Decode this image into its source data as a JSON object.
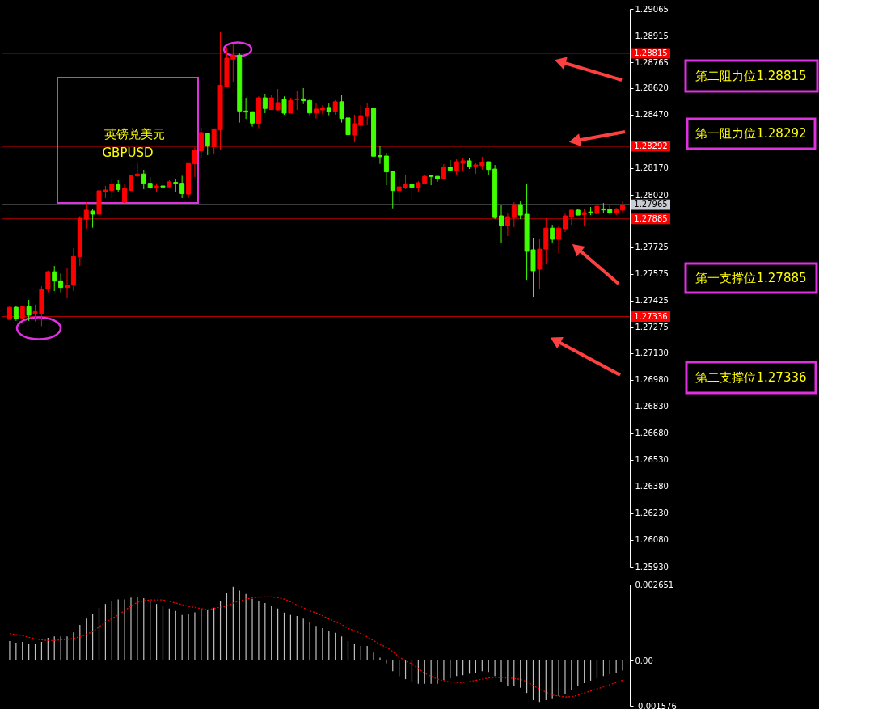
{
  "chart_data": [
    {
      "type": "candlestick",
      "tick_labels": "y",
      "categories": [
        null,
        null,
        null,
        null,
        null,
        null,
        null,
        null,
        null,
        null,
        null,
        null,
        null,
        null,
        null,
        null,
        null,
        null,
        null,
        null,
        null,
        null,
        null,
        null,
        null,
        null,
        null,
        null,
        null,
        null,
        null,
        null,
        null,
        null,
        null,
        null,
        null,
        null,
        null,
        null,
        null,
        null,
        null,
        null,
        null,
        null,
        null,
        null,
        null,
        null,
        null,
        null,
        null,
        null,
        null,
        null,
        null,
        null,
        null,
        null,
        null,
        null,
        null,
        null,
        null,
        null,
        null,
        null,
        null,
        null,
        null,
        null,
        null,
        null,
        null,
        null,
        null,
        null,
        null,
        null,
        null,
        null,
        null,
        null,
        null,
        null,
        null,
        null,
        null,
        null,
        null,
        null,
        null,
        null,
        null,
        null,
        null
      ],
      "ohlc": [
        [
          1.2732,
          1.27391,
          1.2732,
          1.27388
        ],
        [
          1.27388,
          1.27398,
          1.27312,
          1.27323
        ],
        [
          1.27328,
          1.27396,
          1.27325,
          1.27391
        ],
        [
          1.27391,
          1.27429,
          1.27312,
          1.27343
        ],
        [
          1.27353,
          1.27403,
          1.27308,
          1.27364
        ],
        [
          1.2735,
          1.27506,
          1.27282,
          1.27491
        ],
        [
          1.2749,
          1.27594,
          1.27472,
          1.27588
        ],
        [
          1.27588,
          1.2762,
          1.27479,
          1.27535
        ],
        [
          1.27537,
          1.27578,
          1.27472,
          1.27499
        ],
        [
          1.27499,
          1.27611,
          1.27438,
          1.27512
        ],
        [
          1.27512,
          1.2772,
          1.27479,
          1.27673
        ],
        [
          1.27673,
          1.279,
          1.2762,
          1.27888
        ],
        [
          1.27883,
          1.27979,
          1.2783,
          1.27934
        ],
        [
          1.27929,
          1.27938,
          1.27835,
          1.27911
        ],
        [
          1.27911,
          1.28079,
          1.27908,
          1.28043
        ],
        [
          1.28036,
          1.2807,
          1.28002,
          1.28047
        ],
        [
          1.28044,
          1.28106,
          1.28002,
          1.28079
        ],
        [
          1.28077,
          1.28102,
          1.28035,
          1.2805
        ],
        [
          1.27979,
          1.28079,
          1.27971,
          1.28056
        ],
        [
          1.28044,
          1.28127,
          1.28044,
          1.28127
        ],
        [
          1.28126,
          1.28199,
          1.2812,
          1.28137
        ],
        [
          1.28137,
          1.28161,
          1.28052,
          1.28085
        ],
        [
          1.28085,
          1.2812,
          1.2805,
          1.28059
        ],
        [
          1.28058,
          1.28082,
          1.28034,
          1.2807
        ],
        [
          1.2807,
          1.28118,
          1.28052,
          1.28064
        ],
        [
          1.28065,
          1.28102,
          1.28056,
          1.28093
        ],
        [
          1.2809,
          1.28106,
          1.28037,
          1.28085
        ],
        [
          1.28085,
          1.28127,
          1.28002,
          1.28027
        ],
        [
          1.28024,
          1.28196,
          1.28002,
          1.28196
        ],
        [
          1.28194,
          1.2829,
          1.2812,
          1.2827
        ],
        [
          1.28267,
          1.28397,
          1.28226,
          1.2837
        ],
        [
          1.28365,
          1.28368,
          1.28243,
          1.28294
        ],
        [
          1.2829,
          1.28391,
          1.28247,
          1.28391
        ],
        [
          1.28385,
          1.28937,
          1.28271,
          1.28636
        ],
        [
          1.28629,
          1.2885,
          1.28623,
          1.28788
        ],
        [
          1.28782,
          1.28865,
          1.28653,
          1.28805
        ],
        [
          1.28805,
          1.28815,
          1.28426,
          1.28491
        ],
        [
          1.28491,
          1.28565,
          1.28446,
          1.28485
        ],
        [
          1.28487,
          1.28487,
          1.28403,
          1.28423
        ],
        [
          1.28421,
          1.28573,
          1.28394,
          1.28565
        ],
        [
          1.28565,
          1.28588,
          1.28479,
          1.28505
        ],
        [
          1.28499,
          1.28582,
          1.28499,
          1.28565
        ],
        [
          1.28497,
          1.28615,
          1.28494,
          1.28538
        ],
        [
          1.28555,
          1.28573,
          1.2847,
          1.28479
        ],
        [
          1.28479,
          1.28565,
          1.28479,
          1.2855
        ],
        [
          1.28555,
          1.28606,
          1.28497,
          1.28559
        ],
        [
          1.28559,
          1.2862,
          1.2853,
          1.28549
        ],
        [
          1.2855,
          1.28555,
          1.28467,
          1.2848
        ],
        [
          1.2848,
          1.28538,
          1.28449,
          1.28502
        ],
        [
          1.28497,
          1.28524,
          1.28471,
          1.28509
        ],
        [
          1.28511,
          1.28533,
          1.28467,
          1.28487
        ],
        [
          1.2849,
          1.28552,
          1.2847,
          1.28543
        ],
        [
          1.28543,
          1.28579,
          1.28426,
          1.28449
        ],
        [
          1.28452,
          1.28487,
          1.28308,
          1.28358
        ],
        [
          1.28356,
          1.2847,
          1.28315,
          1.2842
        ],
        [
          1.28411,
          1.28524,
          1.28383,
          1.28465
        ],
        [
          1.28461,
          1.28537,
          1.28411,
          1.28506
        ],
        [
          1.28506,
          1.28506,
          1.28237,
          1.28237
        ],
        [
          1.2824,
          1.28297,
          1.28194,
          1.28234
        ],
        [
          1.28238,
          1.28256,
          1.28074,
          1.28149
        ],
        [
          1.28152,
          1.28156,
          1.27944,
          1.28044
        ],
        [
          1.28044,
          1.28106,
          1.27976,
          1.28065
        ],
        [
          1.28061,
          1.28129,
          1.28052,
          1.28079
        ],
        [
          1.28079,
          1.28083,
          1.2799,
          1.28062
        ],
        [
          1.28061,
          1.28097,
          1.28035,
          1.28088
        ],
        [
          1.28083,
          1.28133,
          1.2808,
          1.28124
        ],
        [
          1.28129,
          1.28133,
          1.28074,
          1.28123
        ],
        [
          1.28124,
          1.28124,
          1.28093,
          1.28111
        ],
        [
          1.28111,
          1.28193,
          1.28106,
          1.28175
        ],
        [
          1.28175,
          1.28216,
          1.28152,
          1.28158
        ],
        [
          1.28156,
          1.2822,
          1.28129,
          1.28206
        ],
        [
          1.28197,
          1.28225,
          1.28156,
          1.28211
        ],
        [
          1.28211,
          1.28225,
          1.28165,
          1.28179
        ],
        [
          1.28182,
          1.28197,
          1.28138,
          1.28188
        ],
        [
          1.28184,
          1.28234,
          1.28161,
          1.28202
        ],
        [
          1.28206,
          1.28206,
          1.28129,
          1.28162
        ],
        [
          1.28165,
          1.28188,
          1.27883,
          1.27892
        ],
        [
          1.27902,
          1.27965,
          1.27752,
          1.27847
        ],
        [
          1.27847,
          1.27915,
          1.27788,
          1.27897
        ],
        [
          1.27892,
          1.27979,
          1.27838,
          1.27965
        ],
        [
          1.27965,
          1.27983,
          1.27883,
          1.27906
        ],
        [
          1.27911,
          1.28079,
          1.27542,
          1.27702
        ],
        [
          1.27711,
          1.27779,
          1.27447,
          1.27593
        ],
        [
          1.27602,
          1.2777,
          1.27493,
          1.27715
        ],
        [
          1.27715,
          1.27888,
          1.27634,
          1.27833
        ],
        [
          1.27833,
          1.27852,
          1.27752,
          1.2777
        ],
        [
          1.2777,
          1.27847,
          1.27693,
          1.27833
        ],
        [
          1.27829,
          1.27915,
          1.27811,
          1.27902
        ],
        [
          1.27897,
          1.27934,
          1.27852,
          1.27934
        ],
        [
          1.27934,
          1.27943,
          1.27906,
          1.27906
        ],
        [
          1.27909,
          1.27938,
          1.27847,
          1.2792
        ],
        [
          1.27924,
          1.27952,
          1.27906,
          1.27918
        ],
        [
          1.27915,
          1.27956,
          1.27915,
          1.27956
        ],
        [
          1.27941,
          1.27974,
          1.27915,
          1.27935
        ],
        [
          1.27938,
          1.27965,
          1.27911,
          1.2792
        ],
        [
          1.2792,
          1.27947,
          1.27906,
          1.27938
        ],
        [
          1.27934,
          1.27983,
          1.27915,
          1.27961
        ]
      ],
      "colors": [
        "#ff0000",
        "#40ff00",
        "#ff0000",
        "#40ff00",
        "#ff0000",
        "#ff0000",
        "#ff0000",
        "#40ff00",
        "#40ff00",
        "#ff0000",
        "#ff0000",
        "#ff0000",
        "#ff0000",
        "#40ff00",
        "#ff0000",
        "#ff0000",
        "#ff0000",
        "#40ff00",
        "#ff0000",
        "#ff0000",
        "#ff0000",
        "#40ff00",
        "#40ff00",
        "#ff0000",
        "#40ff00",
        "#ff0000",
        "#40ff00",
        "#40ff00",
        "#ff0000",
        "#ff0000",
        "#ff0000",
        "#40ff00",
        "#ff0000",
        "#ff0000",
        "#ff0000",
        "#ff0000",
        "#40ff00",
        "#40ff00",
        "#40ff00",
        "#ff0000",
        "#40ff00",
        "#ff0000",
        "#ff0000",
        "#40ff00",
        "#ff0000",
        "#ff0000",
        "#40ff00",
        "#40ff00",
        "#ff0000",
        "#ff0000",
        "#40ff00",
        "#ff0000",
        "#40ff00",
        "#40ff00",
        "#ff0000",
        "#ff0000",
        "#ff0000",
        "#40ff00",
        "#40ff00",
        "#40ff00",
        "#40ff00",
        "#ff0000",
        "#ff0000",
        "#40ff00",
        "#ff0000",
        "#ff0000",
        "#40ff00",
        "#40ff00",
        "#ff0000",
        "#40ff00",
        "#ff0000",
        "#ff0000",
        "#40ff00",
        "#ff0000",
        "#ff0000",
        "#40ff00",
        "#40ff00",
        "#40ff00",
        "#ff0000",
        "#ff0000",
        "#40ff00",
        "#40ff00",
        "#40ff00",
        "#ff0000",
        "#ff0000",
        "#40ff00",
        "#ff0000",
        "#ff0000",
        "#ff0000",
        "#40ff00",
        "#ff0000",
        "#40ff00",
        "#ff0000",
        "#40ff00",
        "#40ff00",
        "#ff0000",
        "#ff0000"
      ],
      "ylim": [
        1.2593,
        1.29065
      ],
      "yticks": [
        {
          "value": 1.29065,
          "label": "1.29065"
        },
        {
          "value": 1.28915,
          "label": "1.28915"
        },
        {
          "value": 1.28765,
          "label": "1.28765"
        },
        {
          "value": 1.2862,
          "label": "1.28620"
        },
        {
          "value": 1.2847,
          "label": "1.28470"
        },
        {
          "value": 1.2817,
          "label": "1.28170"
        },
        {
          "value": 1.2802,
          "label": "1.28020"
        },
        {
          "value": 1.27725,
          "label": "1.27725"
        },
        {
          "value": 1.27575,
          "label": "1.27575"
        },
        {
          "value": 1.27425,
          "label": "1.27425"
        },
        {
          "value": 1.27275,
          "label": "1.27275"
        },
        {
          "value": 1.2713,
          "label": "1.27130"
        },
        {
          "value": 1.2698,
          "label": "1.26980"
        },
        {
          "value": 1.2683,
          "label": "1.26830"
        },
        {
          "value": 1.2668,
          "label": "1.26680"
        },
        {
          "value": 1.2653,
          "label": "1.26530"
        },
        {
          "value": 1.2638,
          "label": "1.26380"
        },
        {
          "value": 1.2623,
          "label": "1.26230"
        },
        {
          "value": 1.2608,
          "label": "1.26080"
        },
        {
          "value": 1.2593,
          "label": "1.25930"
        }
      ],
      "ref_lines": [
        {
          "axis": "y",
          "value": 1.28815,
          "label": "1.28815",
          "color": "#ff0000"
        },
        {
          "axis": "y",
          "value": 1.28292,
          "label": "1.28292",
          "color": "#ff0000"
        },
        {
          "axis": "y",
          "value": 1.27965,
          "label": "1.27965",
          "color": "#c8ccd4"
        },
        {
          "axis": "y",
          "value": 1.27885,
          "label": "1.27885",
          "color": "#ff0000"
        },
        {
          "axis": "y",
          "value": 1.27336,
          "label": "1.27336",
          "color": "#ff0000"
        }
      ],
      "annotations": [
        "英镑兑美元",
        "GBPUSD",
        "第二阻力位1.28815",
        "第一阻力位1.28292",
        "第一支撑位1.27885",
        "第二支撑位1.27336"
      ]
    },
    {
      "type": "bar",
      "tick_labels": "y",
      "categories": [
        null,
        null,
        null,
        null,
        null,
        null,
        null,
        null,
        null,
        null,
        null,
        null,
        null,
        null,
        null,
        null,
        null,
        null,
        null,
        null,
        null,
        null,
        null,
        null,
        null,
        null,
        null,
        null,
        null,
        null,
        null,
        null,
        null,
        null,
        null,
        null,
        null,
        null,
        null,
        null,
        null,
        null,
        null,
        null,
        null,
        null,
        null,
        null,
        null,
        null,
        null,
        null,
        null,
        null,
        null,
        null,
        null,
        null,
        null,
        null,
        null,
        null,
        null,
        null,
        null,
        null,
        null,
        null,
        null,
        null,
        null,
        null,
        null,
        null,
        null,
        null,
        null,
        null,
        null,
        null,
        null,
        null,
        null,
        null,
        null,
        null,
        null,
        null,
        null,
        null,
        null,
        null,
        null,
        null,
        null,
        null,
        null
      ],
      "series": [
        {
          "type": "bar",
          "color": "#c0c0c0",
          "values": [
            0.00068,
            0.00062,
            0.00065,
            0.00059,
            0.00057,
            0.00065,
            0.00079,
            0.00084,
            0.00084,
            0.00084,
            0.00098,
            0.00124,
            0.00146,
            0.00163,
            0.00184,
            0.00197,
            0.00208,
            0.00213,
            0.00213,
            0.00219,
            0.00222,
            0.00217,
            0.00208,
            0.00197,
            0.00189,
            0.00181,
            0.00173,
            0.00159,
            0.00163,
            0.00168,
            0.00179,
            0.00177,
            0.00184,
            0.00208,
            0.00236,
            0.00257,
            0.00244,
            0.00232,
            0.00215,
            0.00208,
            0.002,
            0.00192,
            0.00181,
            0.00167,
            0.00159,
            0.00155,
            0.00146,
            0.00133,
            0.00121,
            0.00113,
            0.00102,
            0.00097,
            0.00084,
            0.00068,
            0.00057,
            0.00051,
            0.00051,
            0.00028,
            0.0001,
            -0.0001,
            -0.00037,
            -0.00055,
            -0.00065,
            -0.00076,
            -0.00081,
            -0.00081,
            -0.00081,
            -0.00081,
            -0.00068,
            -0.00062,
            -0.00054,
            -0.00051,
            -0.00046,
            -0.00043,
            -0.00037,
            -0.0004,
            -0.00054,
            -0.00076,
            -0.00087,
            -0.0009,
            -0.00095,
            -0.00113,
            -0.00138,
            -0.00144,
            -0.00138,
            -0.00134,
            -0.00124,
            -0.00115,
            -0.00101,
            -0.0009,
            -0.00079,
            -0.0007,
            -0.00062,
            -0.00054,
            -0.00048,
            -0.00043,
            -0.00035
          ]
        },
        {
          "type": "line",
          "color": "#ff0000",
          "line_style": "dotted",
          "values": [
            0.00094,
            0.0009,
            0.00087,
            0.00081,
            0.00076,
            0.00072,
            0.0007,
            0.0007,
            0.00072,
            0.00073,
            0.00077,
            0.00083,
            0.00091,
            0.00101,
            0.00117,
            0.00135,
            0.00146,
            0.00159,
            0.00174,
            0.0019,
            0.00203,
            0.00208,
            0.00211,
            0.00211,
            0.00211,
            0.00206,
            0.002,
            0.00195,
            0.00189,
            0.00185,
            0.00181,
            0.00177,
            0.00181,
            0.00186,
            0.0019,
            0.002,
            0.00208,
            0.00214,
            0.00218,
            0.00221,
            0.00222,
            0.00222,
            0.00219,
            0.00214,
            0.00204,
            0.00193,
            0.00184,
            0.00173,
            0.00166,
            0.00156,
            0.00145,
            0.00135,
            0.00126,
            0.00112,
            0.00104,
            0.00094,
            0.00083,
            0.00069,
            0.00057,
            0.00046,
            0.00032,
            0.00011,
            0,
            -0.00012,
            -0.00028,
            -0.00044,
            -0.00055,
            -0.00065,
            -0.0007,
            -0.00075,
            -0.00076,
            -0.00076,
            -0.00073,
            -0.00069,
            -0.00065,
            -0.00061,
            -0.00059,
            -0.00059,
            -0.00061,
            -0.00062,
            -0.00066,
            -0.00073,
            -0.00087,
            -0.00099,
            -0.0011,
            -0.0012,
            -0.00124,
            -0.00127,
            -0.00126,
            -0.00121,
            -0.00113,
            -0.00106,
            -0.00099,
            -0.00092,
            -0.00084,
            -0.00076,
            -0.00069
          ]
        }
      ],
      "ylim": [
        -0.001576,
        0.002651
      ],
      "yticks": [
        {
          "value": 0.002651,
          "label": "0.002651"
        },
        {
          "value": 0,
          "label": "0.00"
        },
        {
          "value": -0.001576,
          "label": "-0.001576"
        }
      ]
    }
  ]
}
